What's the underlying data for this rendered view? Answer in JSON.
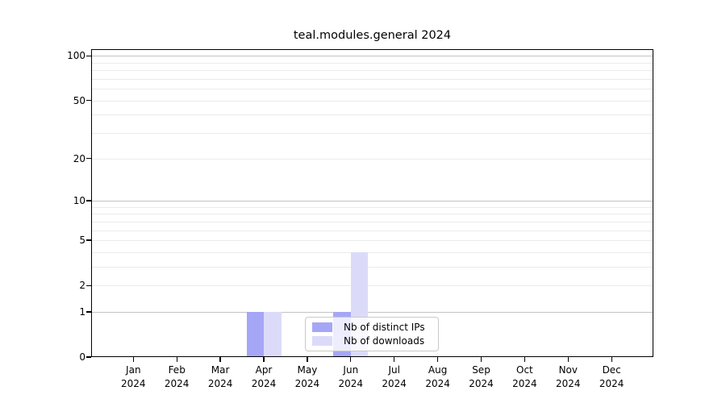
{
  "title": "teal.modules.general 2024",
  "chart_data": {
    "type": "bar",
    "title": "teal.modules.general 2024",
    "categories": [
      "Jan",
      "Feb",
      "Mar",
      "Apr",
      "May",
      "Jun",
      "Jul",
      "Aug",
      "Sep",
      "Oct",
      "Nov",
      "Dec"
    ],
    "x_year_label": "2024",
    "series": [
      {
        "name": "Nb of distinct IPs",
        "color": "#a6a6f7",
        "values": [
          0,
          0,
          0,
          1,
          0,
          1,
          0,
          0,
          0,
          0,
          0,
          0
        ]
      },
      {
        "name": "Nb of downloads",
        "color": "#dbdbf9",
        "values": [
          0,
          0,
          0,
          1,
          0,
          4,
          0,
          0,
          0,
          0,
          0,
          0
        ]
      }
    ],
    "xlabel": "",
    "ylabel": "",
    "y_axis": {
      "scale": "log10(1+v)",
      "tick_labels": [
        100,
        50,
        20,
        10,
        5,
        2,
        1,
        0
      ],
      "major_gridlines": [
        1,
        10,
        100
      ],
      "minor_gridlines": [
        2,
        3,
        4,
        5,
        6,
        7,
        8,
        9,
        20,
        30,
        40,
        50,
        60,
        70,
        80,
        90
      ],
      "ylim": [
        0,
        111
      ]
    },
    "grid": "both",
    "legend_position": "lower-center-inside"
  },
  "legend": {
    "labels": [
      "Nb of distinct IPs",
      "Nb of downloads"
    ]
  },
  "colors": {
    "background": "#ffffff",
    "spine": "#000000",
    "grid_major": "#c3c3c3",
    "grid_minor": "#ebebeb",
    "bar_distinct_ips": "#a6a6f7",
    "bar_downloads": "#dbdbf9",
    "legend_border": "#c9c9c9"
  }
}
